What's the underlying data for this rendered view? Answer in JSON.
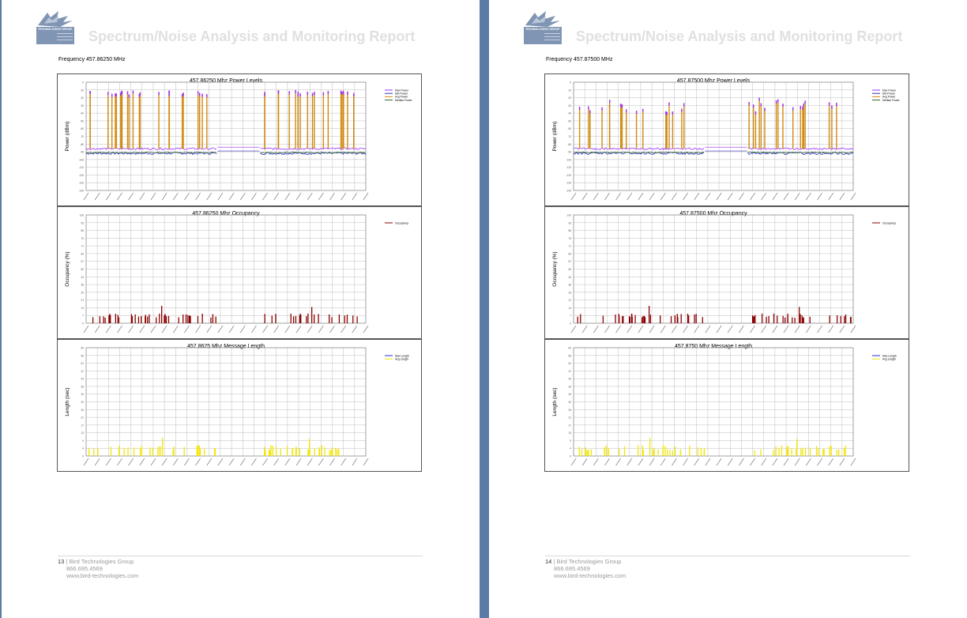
{
  "document": {
    "report_title": "Spectrum/Noise Analysis and Monitoring Report",
    "company": "Bird Technologies Group",
    "phone": "866.695.4569",
    "website": "www.bird-technologies.com",
    "logo_text": "TECHNOLOGIES GROUP",
    "logo_color": "#7f95b3"
  },
  "pages": [
    {
      "page_number": "13",
      "frequency_label": "Frequency 457.86250 MHz",
      "charts": [
        {
          "type": "line",
          "title": "457.86250 Mhz Power Levels",
          "ylabel": "Power (dBm)",
          "ylim": [
            -140,
            0
          ],
          "legend": [
            "Max Power",
            "Min Power",
            "Avg Power",
            "Median Power"
          ],
          "legend_placement": "right",
          "colors": [
            "#9b30ff",
            "#3a2cc7",
            "#d08a10",
            "#2f6a2f"
          ],
          "mode": "power-a"
        },
        {
          "type": "bar",
          "title": "457.86250 Mhz Occupancy",
          "ylabel": "Occupancy (%)",
          "ylim": [
            0,
            100
          ],
          "legend": [
            "Occupancy"
          ],
          "legend_placement": "right",
          "colors": [
            "#8b0000"
          ],
          "mode": "occ"
        },
        {
          "type": "bar",
          "title": "457.8625 Mhz Message Length",
          "ylabel": "Length (sec)",
          "ylim": [
            0,
            60
          ],
          "legend": [
            "Max Length",
            "Avg Length"
          ],
          "legend_placement": "right",
          "colors": [
            "#2b2bd6",
            "#f2e600"
          ],
          "mode": "len"
        }
      ]
    },
    {
      "page_number": "14",
      "frequency_label": "Frequency 457.87500 MHz",
      "charts": [
        {
          "type": "line",
          "title": "457.87500 Mhz Power Levels",
          "ylabel": "Power (dBm)",
          "ylim": [
            -140,
            0
          ],
          "legend": [
            "Max Power",
            "Min Power",
            "Avg Power",
            "Median Power"
          ],
          "legend_placement": "right",
          "colors": [
            "#9b30ff",
            "#3a2cc7",
            "#d08a10",
            "#2f6a2f"
          ],
          "mode": "power-b"
        },
        {
          "type": "bar",
          "title": "457.87500 Mhz Occupancy",
          "ylabel": "Occupancy (%)",
          "ylim": [
            0,
            100
          ],
          "legend": [
            "Occupancy"
          ],
          "legend_placement": "right",
          "colors": [
            "#8b0000"
          ],
          "mode": "occ"
        },
        {
          "type": "bar",
          "title": "457.8750 Mhz Message Length",
          "ylabel": "Length (sec)",
          "ylim": [
            0,
            60
          ],
          "legend": [
            "Max Length",
            "Avg Length"
          ],
          "legend_placement": "right",
          "colors": [
            "#2b2bd6",
            "#f2e600"
          ],
          "mode": "len"
        }
      ]
    }
  ]
}
